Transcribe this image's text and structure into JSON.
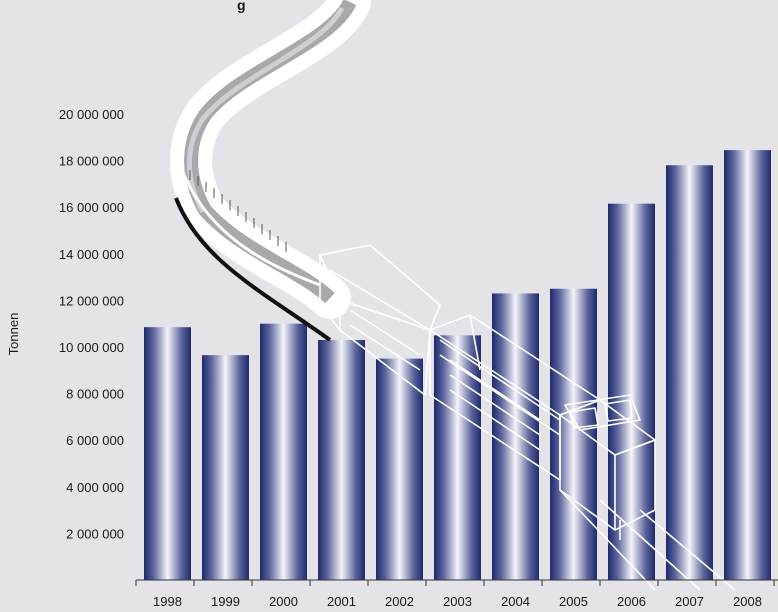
{
  "chart_data": {
    "type": "bar",
    "title": "",
    "title_fragment": "g",
    "xlabel": "",
    "ylabel": "Tonnen",
    "categories": [
      "1998",
      "1999",
      "2000",
      "2001",
      "2002",
      "2003",
      "2004",
      "2005",
      "2006",
      "2007",
      "2008"
    ],
    "series": [
      {
        "values": [
          10850000,
          9650000,
          11000000,
          10300000,
          9500000,
          10500000,
          12300000,
          12500000,
          16150000,
          17800000,
          18450000
        ]
      }
    ],
    "y_ticks": [
      "2 000 000",
      "4 000 000",
      "6 000 000",
      "8 000 000",
      "10 000 000",
      "12 000 000",
      "14 000 000",
      "16 000 000",
      "18 000 000",
      "20 000 000"
    ],
    "ylim": [
      0,
      22000000
    ],
    "grid": false,
    "legend": "none",
    "colors": {
      "background": "#e4e3e8",
      "bar_dark": "#1e2a6e",
      "bar_light": "#f4f4fa",
      "axis": "#333333"
    }
  }
}
